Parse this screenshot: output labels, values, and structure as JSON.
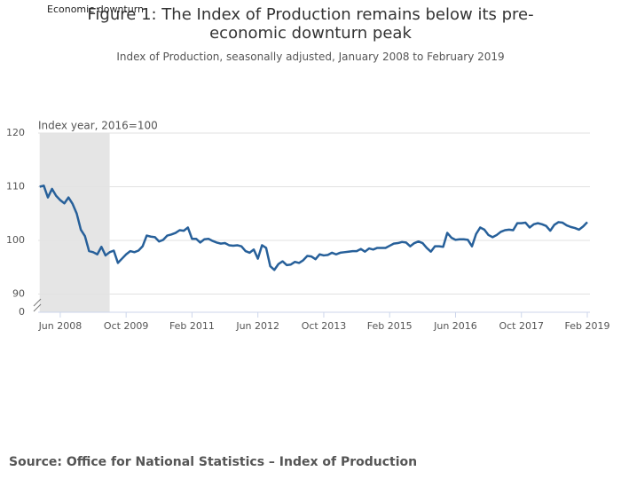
{
  "chart_data": {
    "type": "line",
    "title": "Figure 1: The Index of Production remains below its pre-economic downturn peak",
    "subtitle": "Index of Production, seasonally adjusted, January 2008 to February 2019",
    "y_label": "Index year, 2016=100",
    "source": "Source: Office for National Statistics – Index of Production",
    "shade": {
      "label": "Economic downturn",
      "x": [
        0,
        17
      ]
    },
    "categories": [
      null,
      null,
      null,
      null,
      null,
      "Jun 2008",
      null,
      null,
      null,
      null,
      null,
      null,
      null,
      null,
      null,
      null,
      null,
      null,
      null,
      null,
      null,
      "Oct 2009",
      null,
      null,
      null,
      null,
      null,
      null,
      null,
      null,
      null,
      null,
      null,
      null,
      null,
      null,
      null,
      "Feb 2011",
      null,
      null,
      null,
      null,
      null,
      null,
      null,
      null,
      null,
      null,
      null,
      null,
      null,
      null,
      null,
      "Jun 2012",
      null,
      null,
      null,
      null,
      null,
      null,
      null,
      null,
      null,
      null,
      null,
      null,
      null,
      null,
      null,
      "Oct 2013",
      null,
      null,
      null,
      null,
      null,
      null,
      null,
      null,
      null,
      null,
      null,
      null,
      null,
      null,
      null,
      "Feb 2015",
      null,
      null,
      null,
      null,
      null,
      null,
      null,
      null,
      null,
      null,
      null,
      null,
      null,
      null,
      null,
      "Jun 2016",
      null,
      null,
      null,
      null,
      null,
      null,
      null,
      null,
      null,
      null,
      null,
      null,
      null,
      null,
      null,
      "Oct 2017",
      null,
      null,
      null,
      null,
      null,
      null,
      null,
      null,
      null,
      null,
      null,
      null,
      null,
      null,
      null,
      "Feb 2019"
    ],
    "series": [
      {
        "name": "Index of Production",
        "color": "#27609a",
        "values": [
          110,
          110.2,
          108,
          109.6,
          108.3,
          107.5,
          106.9,
          108,
          106.8,
          105,
          102,
          100.8,
          98,
          97.8,
          97.4,
          98.8,
          97.2,
          97.8,
          98.1,
          95.8,
          96.6,
          97.4,
          98,
          97.8,
          98.1,
          98.9,
          100.9,
          100.7,
          100.6,
          99.8,
          100.1,
          100.9,
          101.1,
          101.4,
          101.9,
          101.8,
          102.4,
          100.3,
          100.3,
          99.6,
          100.2,
          100.3,
          99.9,
          99.6,
          99.4,
          99.5,
          99.1,
          99,
          99.1,
          98.9,
          98,
          97.7,
          98.3,
          96.6,
          99.1,
          98.6,
          95.2,
          94.5,
          95.6,
          96.1,
          95.4,
          95.5,
          96,
          95.8,
          96.3,
          97.1,
          97,
          96.5,
          97.4,
          97.2,
          97.3,
          97.7,
          97.4,
          97.7,
          97.8,
          97.9,
          98,
          98,
          98.4,
          97.9,
          98.5,
          98.3,
          98.6,
          98.6,
          98.6,
          99,
          99.4,
          99.5,
          99.7,
          99.6,
          98.9,
          99.5,
          99.8,
          99.5,
          98.6,
          97.9,
          98.9,
          98.9,
          98.8,
          101.4,
          100.5,
          100.1,
          100.2,
          100.2,
          100.1,
          98.9,
          101.2,
          102.4,
          102,
          101,
          100.6,
          101,
          101.6,
          101.9,
          102,
          101.9,
          103.2,
          103.2,
          103.3,
          102.4,
          103,
          103.2,
          103,
          102.7,
          101.8,
          102.9,
          103.4,
          103.3,
          102.8,
          102.5,
          102.3,
          102,
          102.6,
          103.4
        ]
      }
    ],
    "ylim": [
      0,
      120
    ],
    "axis_break_below": 88,
    "yticks": [
      0,
      90,
      100,
      110,
      120
    ],
    "grid": true
  }
}
